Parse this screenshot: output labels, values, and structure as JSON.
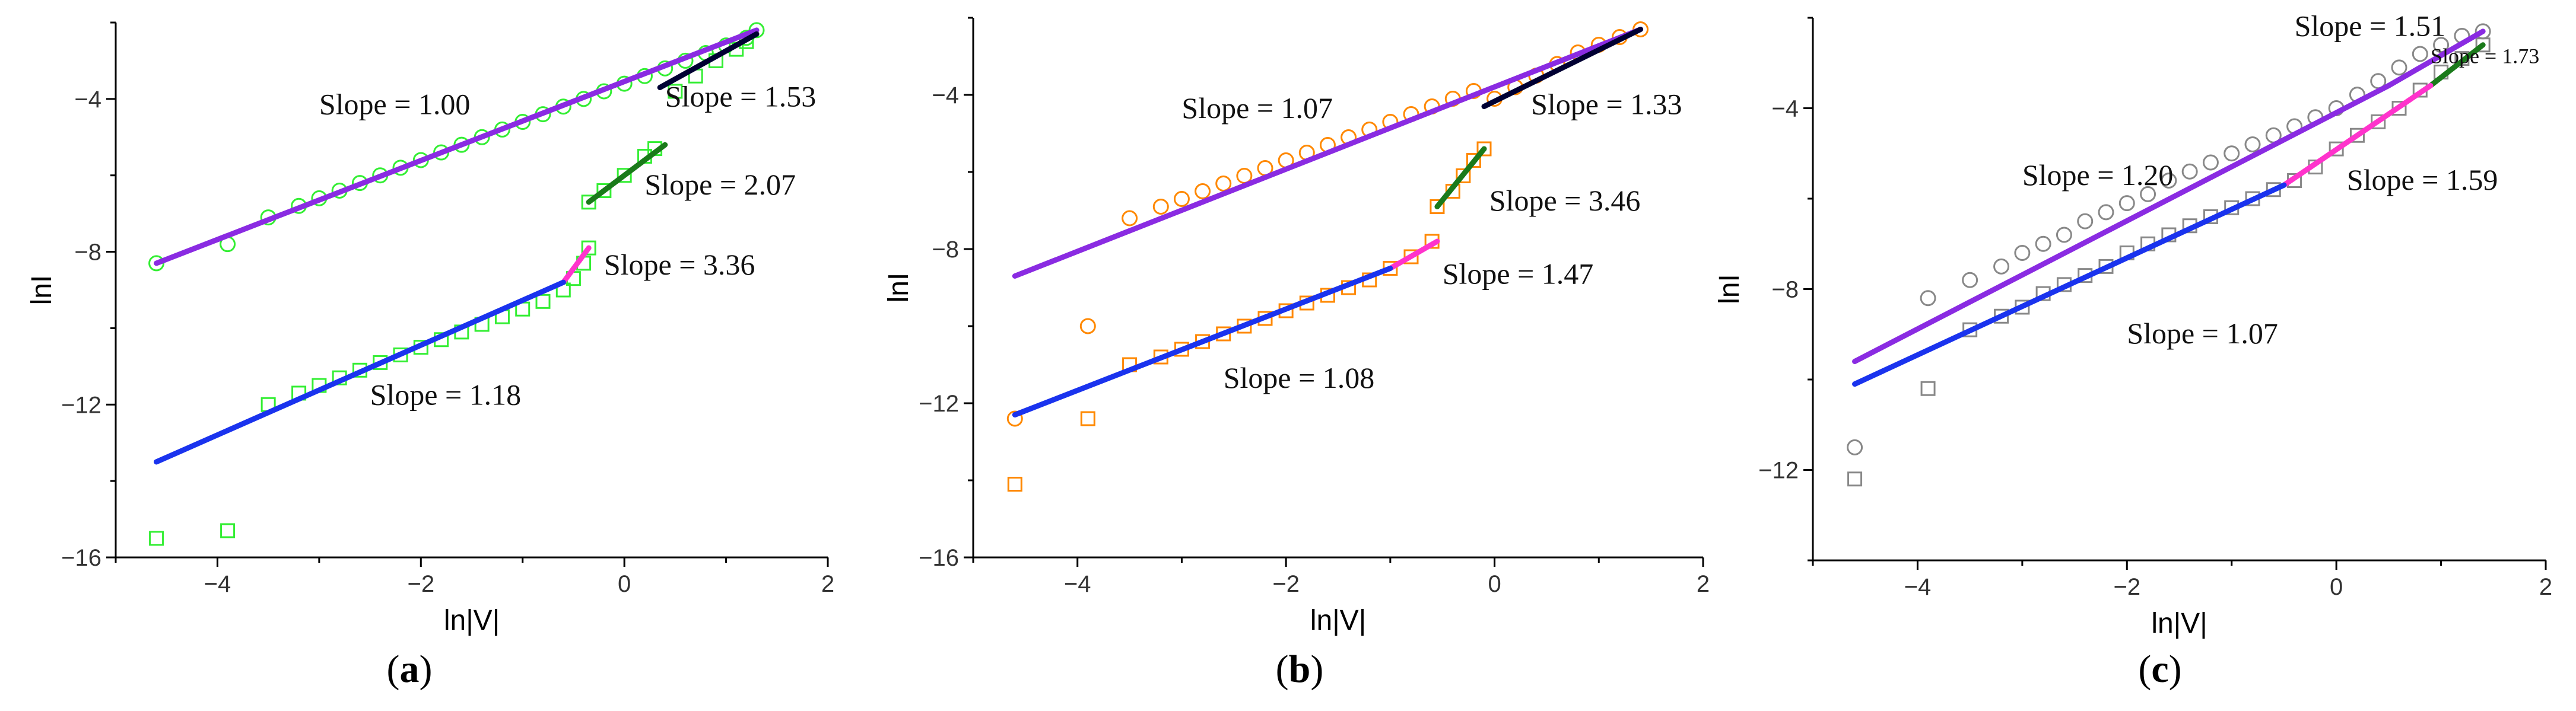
{
  "chart_data": [
    {
      "panel": "a",
      "type": "scatter",
      "caption": {
        "open": "(",
        "letter": "a",
        "close": ")"
      },
      "xlabel": "ln|V|",
      "ylabel": "lnI",
      "xlim": [
        -5,
        2
      ],
      "ylim": [
        -16,
        -2
      ],
      "xticks": [
        -4,
        -2,
        0,
        2
      ],
      "yticks": [
        -4,
        -8,
        -12,
        -16
      ],
      "marker_color": "#33ee33",
      "series": [
        {
          "name": "circles",
          "marker": "circle",
          "points": [
            [
              -4.6,
              -8.3
            ],
            [
              -3.9,
              -7.8
            ],
            [
              -3.5,
              -7.1
            ],
            [
              -3.2,
              -6.8
            ],
            [
              -3.0,
              -6.6
            ],
            [
              -2.8,
              -6.4
            ],
            [
              -2.6,
              -6.2
            ],
            [
              -2.4,
              -6.0
            ],
            [
              -2.2,
              -5.8
            ],
            [
              -2.0,
              -5.6
            ],
            [
              -1.8,
              -5.4
            ],
            [
              -1.6,
              -5.2
            ],
            [
              -1.4,
              -5.0
            ],
            [
              -1.2,
              -4.8
            ],
            [
              -1.0,
              -4.6
            ],
            [
              -0.8,
              -4.4
            ],
            [
              -0.6,
              -4.2
            ],
            [
              -0.4,
              -4.0
            ],
            [
              -0.2,
              -3.8
            ],
            [
              0.0,
              -3.6
            ],
            [
              0.2,
              -3.4
            ],
            [
              0.4,
              -3.2
            ],
            [
              0.6,
              -3.0
            ],
            [
              0.8,
              -2.8
            ],
            [
              1.0,
              -2.6
            ],
            [
              1.2,
              -2.4
            ],
            [
              1.3,
              -2.2
            ]
          ]
        },
        {
          "name": "squares",
          "marker": "square",
          "points": [
            [
              -4.6,
              -15.5
            ],
            [
              -3.9,
              -15.3
            ],
            [
              -3.5,
              -12.0
            ],
            [
              -3.2,
              -11.7
            ],
            [
              -3.0,
              -11.5
            ],
            [
              -2.8,
              -11.3
            ],
            [
              -2.6,
              -11.1
            ],
            [
              -2.4,
              -10.9
            ],
            [
              -2.2,
              -10.7
            ],
            [
              -2.0,
              -10.5
            ],
            [
              -1.8,
              -10.3
            ],
            [
              -1.6,
              -10.1
            ],
            [
              -1.4,
              -9.9
            ],
            [
              -1.2,
              -9.7
            ],
            [
              -1.0,
              -9.5
            ],
            [
              -0.8,
              -9.3
            ],
            [
              -0.6,
              -9.0
            ],
            [
              -0.5,
              -8.7
            ],
            [
              -0.4,
              -8.3
            ],
            [
              -0.35,
              -7.9
            ],
            [
              -0.35,
              -6.7
            ],
            [
              -0.2,
              -6.4
            ],
            [
              0.0,
              -6.0
            ],
            [
              0.2,
              -5.5
            ],
            [
              0.3,
              -5.3
            ],
            [
              0.5,
              -3.8
            ],
            [
              0.7,
              -3.4
            ],
            [
              0.9,
              -3.0
            ],
            [
              1.1,
              -2.7
            ],
            [
              1.2,
              -2.5
            ]
          ]
        }
      ],
      "fits": [
        {
          "slope_text": "Slope = 1.00",
          "color": "#8a2be2",
          "x": [
            -4.6,
            1.3
          ],
          "y": [
            -8.3,
            -2.2
          ]
        },
        {
          "slope_text": "Slope = 1.53",
          "color": "#000033",
          "x": [
            0.35,
            1.3
          ],
          "y": [
            -3.7,
            -2.3
          ]
        },
        {
          "slope_text": "Slope = 2.07",
          "color": "#1a7a1a",
          "x": [
            -0.35,
            0.4
          ],
          "y": [
            -6.7,
            -5.2
          ]
        },
        {
          "slope_text": "Slope = 3.36",
          "color": "#ff33cc",
          "x": [
            -0.6,
            -0.35
          ],
          "y": [
            -8.8,
            -7.9
          ]
        },
        {
          "slope_text": "Slope = 1.18",
          "color": "#1a33ee",
          "x": [
            -4.6,
            -0.6
          ],
          "y": [
            -13.5,
            -8.8
          ]
        }
      ],
      "annotations": [
        {
          "text": "Slope = 1.00",
          "x": -3.0,
          "y": -4.4
        },
        {
          "text": "Slope = 1.53",
          "x": 0.4,
          "y": -4.2
        },
        {
          "text": "Slope = 2.07",
          "x": 0.2,
          "y": -6.5
        },
        {
          "text": "Slope = 3.36",
          "x": -0.2,
          "y": -8.6
        },
        {
          "text": "Slope = 1.18",
          "x": -2.5,
          "y": -12.0
        }
      ]
    },
    {
      "panel": "b",
      "type": "scatter",
      "caption": {
        "open": "(",
        "letter": "b",
        "close": ")"
      },
      "xlabel": "ln|V|",
      "ylabel": "lnI",
      "xlim": [
        -5,
        2
      ],
      "ylim": [
        -16,
        -2
      ],
      "xticks": [
        -4,
        -2,
        0,
        2
      ],
      "yticks": [
        -4,
        -8,
        -12,
        -16
      ],
      "marker_color": "#ff8800",
      "series": [
        {
          "name": "circles",
          "marker": "circle",
          "points": [
            [
              -4.6,
              -12.4
            ],
            [
              -3.9,
              -10.0
            ],
            [
              -3.5,
              -7.2
            ],
            [
              -3.2,
              -6.9
            ],
            [
              -3.0,
              -6.7
            ],
            [
              -2.8,
              -6.5
            ],
            [
              -2.6,
              -6.3
            ],
            [
              -2.4,
              -6.1
            ],
            [
              -2.2,
              -5.9
            ],
            [
              -2.0,
              -5.7
            ],
            [
              -1.8,
              -5.5
            ],
            [
              -1.6,
              -5.3
            ],
            [
              -1.4,
              -5.1
            ],
            [
              -1.2,
              -4.9
            ],
            [
              -1.0,
              -4.7
            ],
            [
              -0.8,
              -4.5
            ],
            [
              -0.6,
              -4.3
            ],
            [
              -0.4,
              -4.1
            ],
            [
              -0.2,
              -3.9
            ],
            [
              0.0,
              -4.1
            ],
            [
              0.2,
              -3.8
            ],
            [
              0.4,
              -3.5
            ],
            [
              0.6,
              -3.2
            ],
            [
              0.8,
              -2.9
            ],
            [
              1.0,
              -2.7
            ],
            [
              1.2,
              -2.5
            ],
            [
              1.4,
              -2.3
            ]
          ]
        },
        {
          "name": "squares",
          "marker": "square",
          "points": [
            [
              -4.6,
              -14.1
            ],
            [
              -3.9,
              -12.4
            ],
            [
              -3.5,
              -11.0
            ],
            [
              -3.2,
              -10.8
            ],
            [
              -3.0,
              -10.6
            ],
            [
              -2.8,
              -10.4
            ],
            [
              -2.6,
              -10.2
            ],
            [
              -2.4,
              -10.0
            ],
            [
              -2.2,
              -9.8
            ],
            [
              -2.0,
              -9.6
            ],
            [
              -1.8,
              -9.4
            ],
            [
              -1.6,
              -9.2
            ],
            [
              -1.4,
              -9.0
            ],
            [
              -1.2,
              -8.8
            ],
            [
              -1.0,
              -8.5
            ],
            [
              -0.8,
              -8.2
            ],
            [
              -0.6,
              -7.8
            ],
            [
              -0.55,
              -6.9
            ],
            [
              -0.4,
              -6.5
            ],
            [
              -0.3,
              -6.1
            ],
            [
              -0.2,
              -5.7
            ],
            [
              -0.1,
              -5.4
            ]
          ]
        }
      ],
      "fits": [
        {
          "slope_text": "Slope = 1.07",
          "color": "#8a2be2",
          "x": [
            -4.6,
            1.4
          ],
          "y": [
            -8.7,
            -2.3
          ]
        },
        {
          "slope_text": "Slope = 1.33",
          "color": "#000033",
          "x": [
            -0.1,
            1.4
          ],
          "y": [
            -4.3,
            -2.3
          ]
        },
        {
          "slope_text": "Slope = 3.46",
          "color": "#1a7a1a",
          "x": [
            -0.55,
            -0.1
          ],
          "y": [
            -6.9,
            -5.4
          ]
        },
        {
          "slope_text": "Slope = 1.47",
          "color": "#ff33cc",
          "x": [
            -1.0,
            -0.55
          ],
          "y": [
            -8.5,
            -7.8
          ]
        },
        {
          "slope_text": "Slope = 1.08",
          "color": "#1a33ee",
          "x": [
            -4.6,
            -1.0
          ],
          "y": [
            -12.3,
            -8.5
          ]
        }
      ],
      "annotations": [
        {
          "text": "Slope = 1.07",
          "x": -3.0,
          "y": -4.6
        },
        {
          "text": "Slope = 1.33",
          "x": 0.35,
          "y": -4.5
        },
        {
          "text": "Slope = 3.46",
          "x": -0.05,
          "y": -7.0
        },
        {
          "text": "Slope = 1.47",
          "x": -0.5,
          "y": -8.9
        },
        {
          "text": "Slope = 1.08",
          "x": -2.6,
          "y": -11.6
        }
      ]
    },
    {
      "panel": "c",
      "type": "scatter",
      "caption": {
        "open": "(",
        "letter": "c",
        "close": ")"
      },
      "xlabel": "ln|V|",
      "ylabel": "lnI",
      "xlim": [
        -5,
        2
      ],
      "ylim": [
        -14,
        -2
      ],
      "xticks": [
        -4,
        -2,
        0,
        2
      ],
      "yticks": [
        -4,
        -8,
        -12
      ],
      "marker_color": "#888888",
      "series": [
        {
          "name": "circles",
          "marker": "circle",
          "points": [
            [
              -4.6,
              -11.5
            ],
            [
              -3.9,
              -8.2
            ],
            [
              -3.5,
              -7.8
            ],
            [
              -3.2,
              -7.5
            ],
            [
              -3.0,
              -7.2
            ],
            [
              -2.8,
              -7.0
            ],
            [
              -2.6,
              -6.8
            ],
            [
              -2.4,
              -6.5
            ],
            [
              -2.2,
              -6.3
            ],
            [
              -2.0,
              -6.1
            ],
            [
              -1.8,
              -5.9
            ],
            [
              -1.6,
              -5.6
            ],
            [
              -1.4,
              -5.4
            ],
            [
              -1.2,
              -5.2
            ],
            [
              -1.0,
              -5.0
            ],
            [
              -0.8,
              -4.8
            ],
            [
              -0.6,
              -4.6
            ],
            [
              -0.4,
              -4.4
            ],
            [
              -0.2,
              -4.2
            ],
            [
              0.0,
              -4.0
            ],
            [
              0.2,
              -3.7
            ],
            [
              0.4,
              -3.4
            ],
            [
              0.6,
              -3.1
            ],
            [
              0.8,
              -2.8
            ],
            [
              1.0,
              -2.6
            ],
            [
              1.2,
              -2.4
            ],
            [
              1.4,
              -2.3
            ]
          ]
        },
        {
          "name": "squares",
          "marker": "square",
          "points": [
            [
              -4.6,
              -12.2
            ],
            [
              -3.9,
              -10.2
            ],
            [
              -3.5,
              -8.9
            ],
            [
              -3.2,
              -8.6
            ],
            [
              -3.0,
              -8.4
            ],
            [
              -2.8,
              -8.1
            ],
            [
              -2.6,
              -7.9
            ],
            [
              -2.4,
              -7.7
            ],
            [
              -2.2,
              -7.5
            ],
            [
              -2.0,
              -7.2
            ],
            [
              -1.8,
              -7.0
            ],
            [
              -1.6,
              -6.8
            ],
            [
              -1.4,
              -6.6
            ],
            [
              -1.2,
              -6.4
            ],
            [
              -1.0,
              -6.2
            ],
            [
              -0.8,
              -6.0
            ],
            [
              -0.6,
              -5.8
            ],
            [
              -0.4,
              -5.6
            ],
            [
              -0.2,
              -5.3
            ],
            [
              0.0,
              -4.9
            ],
            [
              0.2,
              -4.6
            ],
            [
              0.4,
              -4.3
            ],
            [
              0.6,
              -4.0
            ],
            [
              0.8,
              -3.6
            ],
            [
              1.0,
              -3.2
            ],
            [
              1.2,
              -2.9
            ],
            [
              1.4,
              -2.6
            ]
          ]
        }
      ],
      "fits": [
        {
          "slope_text": "Slope = 1.51",
          "color": "#8a2be2",
          "x": [
            0.5,
            1.4
          ],
          "y": [
            -3.5,
            -2.3
          ]
        },
        {
          "slope_text": "Slope = 1.73",
          "color": "#1a7a1a",
          "x": [
            0.9,
            1.4
          ],
          "y": [
            -3.5,
            -2.6
          ]
        },
        {
          "slope_text": "Slope = 1.20",
          "color": "#8a2be2",
          "x": [
            -4.6,
            0.5
          ],
          "y": [
            -9.6,
            -3.5
          ]
        },
        {
          "slope_text": "Slope = 1.59",
          "color": "#ff33cc",
          "x": [
            -0.5,
            0.9
          ],
          "y": [
            -5.7,
            -3.5
          ]
        },
        {
          "slope_text": "Slope = 1.07",
          "color": "#1a33ee",
          "x": [
            -4.6,
            -0.5
          ],
          "y": [
            -10.1,
            -5.7
          ]
        }
      ],
      "annotations": [
        {
          "text": "Slope = 1.51",
          "x": -0.4,
          "y": -2.4
        },
        {
          "text": "Slope = 1.73",
          "x": 0.9,
          "y": -3.0,
          "small": true
        },
        {
          "text": "Slope = 1.20",
          "x": -3.0,
          "y": -5.7
        },
        {
          "text": "Slope = 1.59",
          "x": 0.1,
          "y": -5.8
        },
        {
          "text": "Slope = 1.07",
          "x": -2.0,
          "y": -9.2
        }
      ]
    }
  ]
}
